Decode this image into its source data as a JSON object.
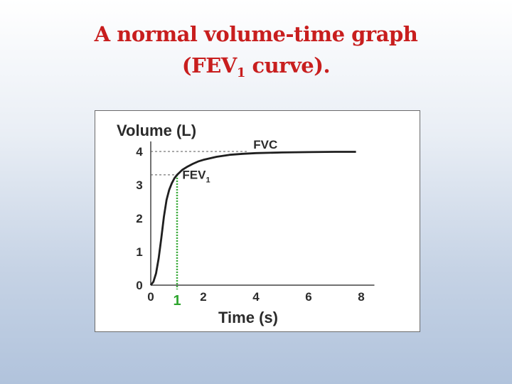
{
  "slide": {
    "title_line1": "A normal volume-time graph",
    "title_line2_pre": "(FEV",
    "title_line2_sub": "1",
    "title_line2_post": " curve)."
  },
  "chart_data": {
    "type": "line",
    "ylabel": "Volume (L)",
    "xlabel": "Time (s)",
    "xlim": [
      0,
      8.5
    ],
    "ylim": [
      0,
      4.3
    ],
    "x_ticks": [
      "0",
      "2",
      "4",
      "6",
      "8"
    ],
    "y_ticks": [
      "0",
      "1",
      "2",
      "3",
      "4"
    ],
    "grid": false,
    "series": [
      {
        "x": [
          0,
          0.1,
          0.2,
          0.3,
          0.4,
          0.5,
          0.6,
          0.7,
          0.8,
          0.9,
          1.0,
          1.2,
          1.4,
          1.6,
          1.8,
          2.0,
          2.5,
          3.0,
          3.5,
          4.0,
          5.0,
          6.0,
          7.0,
          7.8
        ],
        "y": [
          0,
          0.1,
          0.35,
          0.8,
          1.4,
          2.05,
          2.55,
          2.85,
          3.05,
          3.2,
          3.3,
          3.45,
          3.55,
          3.63,
          3.7,
          3.75,
          3.84,
          3.9,
          3.93,
          3.95,
          3.97,
          3.98,
          3.99,
          3.99
        ],
        "color": "#1f1f1f"
      }
    ],
    "annotations": [
      {
        "label": "FVC",
        "x": 3.9,
        "y": 4.0
      },
      {
        "label": "FEV",
        "sub": "1",
        "x": 1.2,
        "y": 3.1
      }
    ],
    "markers": {
      "fvc_value": 4.0,
      "fev1_time": 1,
      "fev1_value": 3.3,
      "highlight_label": "1",
      "highlight_color": "#2ea52e"
    }
  }
}
